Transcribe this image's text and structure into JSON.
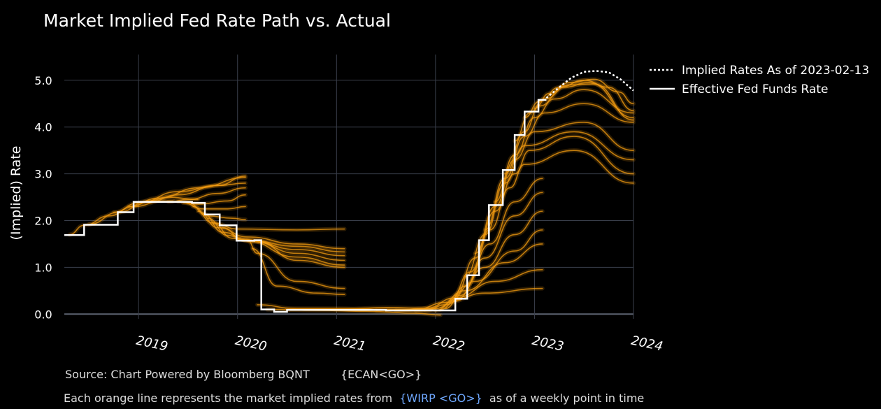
{
  "chart_data": {
    "type": "line",
    "title": "Market Implied Fed Rate Path vs. Actual",
    "ylabel": "(Implied) Rate",
    "xlabel": "",
    "xlim": [
      2018.25,
      2024.0
    ],
    "ylim": [
      -0.1,
      5.55
    ],
    "y_ticks": [
      0.0,
      1.0,
      2.0,
      3.0,
      4.0,
      5.0
    ],
    "y_tick_labels": [
      "0.0",
      "1.0",
      "2.0",
      "3.0",
      "4.0",
      "5.0"
    ],
    "x_ticks": [
      2019,
      2020,
      2021,
      2022,
      2023,
      2024
    ],
    "x_tick_labels": [
      "2019",
      "2020",
      "2021",
      "2022",
      "2023",
      "2024"
    ],
    "grid": true,
    "legend_placement": "top-right",
    "colors": {
      "background": "#000000",
      "grid": "#3a3f4b",
      "zero_line": "#5c6370",
      "implied_paths": "#f39c12",
      "effective_rate": "#ffffff",
      "implied_latest": "#ffffff"
    },
    "series": [
      {
        "name": "Implied Rates As of 2023-02-13",
        "style": "dotted",
        "x": [
          2023.12,
          2023.25,
          2023.37,
          2023.5,
          2023.62,
          2023.75,
          2023.87,
          2024.0
        ],
        "values": [
          4.62,
          4.85,
          5.05,
          5.18,
          5.2,
          5.17,
          5.02,
          4.78
        ]
      },
      {
        "name": "Effective Fed Funds Rate",
        "style": "step",
        "x": [
          2018.25,
          2018.37,
          2018.45,
          2018.69,
          2018.79,
          2018.95,
          2019.35,
          2019.54,
          2019.67,
          2019.82,
          2019.99,
          2020.17,
          2020.24,
          2020.37,
          2020.5,
          2021.0,
          2021.5,
          2022.0,
          2022.2,
          2022.32,
          2022.44,
          2022.54,
          2022.68,
          2022.8,
          2022.9,
          2023.04,
          2023.12
        ],
        "values": [
          1.69,
          1.69,
          1.91,
          1.91,
          2.18,
          2.4,
          2.4,
          2.38,
          2.13,
          1.9,
          1.57,
          1.58,
          0.1,
          0.05,
          0.09,
          0.09,
          0.08,
          0.08,
          0.33,
          0.83,
          1.58,
          2.33,
          3.08,
          3.83,
          4.33,
          4.58,
          4.58
        ]
      }
    ],
    "implied_paths_fan": [
      {
        "start": [
          2018.3,
          1.7
        ],
        "points": [
          [
            2018.45,
            1.9
          ],
          [
            2018.7,
            2.1
          ],
          [
            2018.95,
            2.3
          ],
          [
            2019.25,
            2.42
          ],
          [
            2019.35,
            2.42
          ]
        ]
      },
      {
        "start": [
          2018.5,
          1.92
        ],
        "points": [
          [
            2018.8,
            2.18
          ],
          [
            2019.1,
            2.42
          ],
          [
            2019.3,
            2.5
          ],
          [
            2019.6,
            2.45
          ]
        ]
      },
      {
        "start": [
          2018.75,
          2.18
        ],
        "points": [
          [
            2019.0,
            2.38
          ],
          [
            2019.4,
            2.62
          ],
          [
            2019.8,
            2.75
          ],
          [
            2020.08,
            2.8
          ]
        ]
      },
      {
        "start": [
          2018.9,
          2.3
        ],
        "points": [
          [
            2019.2,
            2.48
          ],
          [
            2019.6,
            2.7
          ],
          [
            2020.08,
            2.92
          ]
        ]
      },
      {
        "start": [
          2019.1,
          2.4
        ],
        "points": [
          [
            2019.4,
            2.55
          ],
          [
            2019.8,
            2.75
          ],
          [
            2020.08,
            2.95
          ]
        ]
      },
      {
        "start": [
          2019.3,
          2.4
        ],
        "points": [
          [
            2019.5,
            2.45
          ],
          [
            2019.8,
            2.58
          ],
          [
            2020.08,
            2.7
          ]
        ]
      },
      {
        "start": [
          2019.4,
          2.4
        ],
        "points": [
          [
            2019.6,
            2.35
          ],
          [
            2019.9,
            2.42
          ],
          [
            2020.08,
            2.55
          ]
        ]
      },
      {
        "start": [
          2019.45,
          2.38
        ],
        "points": [
          [
            2019.65,
            2.25
          ],
          [
            2019.9,
            2.25
          ],
          [
            2020.08,
            2.3
          ]
        ]
      },
      {
        "start": [
          2019.5,
          2.38
        ],
        "points": [
          [
            2019.7,
            2.1
          ],
          [
            2019.95,
            2.05
          ],
          [
            2020.08,
            2.02
          ]
        ]
      },
      {
        "start": [
          2019.55,
          2.3
        ],
        "points": [
          [
            2019.75,
            1.95
          ],
          [
            2020.0,
            1.82
          ],
          [
            2020.6,
            1.8
          ],
          [
            2021.08,
            1.82
          ]
        ]
      },
      {
        "start": [
          2019.6,
          2.2
        ],
        "points": [
          [
            2019.8,
            1.85
          ],
          [
            2020.1,
            1.65
          ],
          [
            2020.6,
            1.5
          ],
          [
            2021.08,
            1.4
          ]
        ]
      },
      {
        "start": [
          2019.65,
          2.15
        ],
        "points": [
          [
            2019.85,
            1.75
          ],
          [
            2020.1,
            1.58
          ],
          [
            2020.6,
            1.45
          ],
          [
            2021.08,
            1.33
          ]
        ]
      },
      {
        "start": [
          2019.7,
          2.05
        ],
        "points": [
          [
            2019.9,
            1.68
          ],
          [
            2020.1,
            1.58
          ],
          [
            2020.6,
            1.38
          ],
          [
            2021.08,
            1.25
          ]
        ]
      },
      {
        "start": [
          2019.75,
          1.95
        ],
        "points": [
          [
            2019.95,
            1.62
          ],
          [
            2020.15,
            1.55
          ],
          [
            2020.6,
            1.3
          ],
          [
            2021.08,
            1.15
          ]
        ]
      },
      {
        "start": [
          2019.85,
          1.85
        ],
        "points": [
          [
            2020.05,
            1.6
          ],
          [
            2020.6,
            1.22
          ],
          [
            2021.08,
            1.05
          ]
        ]
      },
      {
        "start": [
          2020.0,
          1.6
        ],
        "points": [
          [
            2020.2,
            1.55
          ],
          [
            2020.6,
            1.15
          ],
          [
            2021.08,
            1.0
          ]
        ]
      },
      {
        "start": [
          2020.1,
          1.58
        ],
        "points": [
          [
            2020.2,
            1.3
          ],
          [
            2020.6,
            0.7
          ],
          [
            2021.08,
            0.55
          ]
        ]
      },
      {
        "start": [
          2020.15,
          1.4
        ],
        "points": [
          [
            2020.4,
            0.6
          ],
          [
            2020.8,
            0.45
          ],
          [
            2021.08,
            0.42
          ]
        ]
      },
      {
        "start": [
          2020.2,
          0.2
        ],
        "points": [
          [
            2020.6,
            0.12
          ],
          [
            2021.0,
            0.12
          ],
          [
            2021.5,
            0.1
          ],
          [
            2022.0,
            0.08
          ]
        ]
      },
      {
        "start": [
          2020.3,
          0.1
        ],
        "points": [
          [
            2020.8,
            0.08
          ],
          [
            2021.3,
            0.06
          ],
          [
            2021.8,
            0.02
          ],
          [
            2022.05,
            -0.02
          ]
        ]
      },
      {
        "start": [
          2020.5,
          0.1
        ],
        "points": [
          [
            2021.0,
            0.1
          ],
          [
            2021.5,
            0.14
          ],
          [
            2022.0,
            0.12
          ]
        ]
      },
      {
        "start": [
          2021.4,
          0.08
        ],
        "points": [
          [
            2021.8,
            0.1
          ],
          [
            2022.1,
            0.25
          ],
          [
            2022.5,
            0.45
          ],
          [
            2023.08,
            0.55
          ]
        ]
      },
      {
        "start": [
          2021.6,
          0.08
        ],
        "points": [
          [
            2021.9,
            0.12
          ],
          [
            2022.2,
            0.35
          ],
          [
            2022.6,
            0.7
          ],
          [
            2023.08,
            0.95
          ]
        ]
      },
      {
        "start": [
          2021.8,
          0.08
        ],
        "points": [
          [
            2022.0,
            0.12
          ],
          [
            2022.3,
            0.5
          ],
          [
            2022.7,
            1.1
          ],
          [
            2023.08,
            1.5
          ]
        ]
      },
      {
        "start": [
          2021.9,
          0.08
        ],
        "points": [
          [
            2022.1,
            0.2
          ],
          [
            2022.4,
            0.7
          ],
          [
            2022.8,
            1.35
          ],
          [
            2023.08,
            1.8
          ]
        ]
      },
      {
        "start": [
          2022.0,
          0.08
        ],
        "points": [
          [
            2022.2,
            0.3
          ],
          [
            2022.5,
            1.0
          ],
          [
            2022.8,
            1.7
          ],
          [
            2023.08,
            2.2
          ]
        ]
      },
      {
        "start": [
          2022.05,
          0.1
        ],
        "points": [
          [
            2022.25,
            0.4
          ],
          [
            2022.5,
            1.2
          ],
          [
            2022.8,
            2.1
          ],
          [
            2023.08,
            2.6
          ]
        ]
      },
      {
        "start": [
          2022.1,
          0.12
        ],
        "points": [
          [
            2022.3,
            0.6
          ],
          [
            2022.55,
            1.5
          ],
          [
            2022.8,
            2.4
          ],
          [
            2023.08,
            2.9
          ]
        ]
      },
      {
        "start": [
          2022.15,
          0.3
        ],
        "points": [
          [
            2022.35,
            0.9
          ],
          [
            2022.55,
            1.8
          ],
          [
            2022.75,
            2.7
          ],
          [
            2022.9,
            3.2
          ],
          [
            2023.4,
            3.5
          ],
          [
            2024.0,
            2.8
          ]
        ]
      },
      {
        "start": [
          2022.2,
          0.4
        ],
        "points": [
          [
            2022.4,
            1.2
          ],
          [
            2022.6,
            2.2
          ],
          [
            2022.8,
            3.0
          ],
          [
            2022.95,
            3.5
          ],
          [
            2023.4,
            3.8
          ],
          [
            2024.0,
            3.0
          ]
        ]
      },
      {
        "start": [
          2022.3,
          0.8
        ],
        "points": [
          [
            2022.5,
            1.7
          ],
          [
            2022.7,
            2.8
          ],
          [
            2022.9,
            3.6
          ],
          [
            2023.4,
            3.9
          ],
          [
            2024.0,
            3.3
          ]
        ]
      },
      {
        "start": [
          2022.4,
          1.3
        ],
        "points": [
          [
            2022.6,
            2.3
          ],
          [
            2022.8,
            3.3
          ],
          [
            2023.0,
            3.9
          ],
          [
            2023.5,
            4.1
          ],
          [
            2024.0,
            3.5
          ]
        ]
      },
      {
        "start": [
          2022.5,
          1.8
        ],
        "points": [
          [
            2022.7,
            2.9
          ],
          [
            2022.9,
            3.8
          ],
          [
            2023.1,
            4.3
          ],
          [
            2023.5,
            4.5
          ],
          [
            2024.0,
            4.1
          ]
        ]
      },
      {
        "start": [
          2022.6,
          2.4
        ],
        "points": [
          [
            2022.8,
            3.4
          ],
          [
            2023.0,
            4.2
          ],
          [
            2023.2,
            4.6
          ],
          [
            2023.5,
            4.8
          ],
          [
            2024.0,
            4.3
          ]
        ]
      },
      {
        "start": [
          2022.7,
          3.0
        ],
        "points": [
          [
            2022.9,
            3.9
          ],
          [
            2023.05,
            4.45
          ],
          [
            2023.3,
            4.85
          ],
          [
            2023.55,
            4.95
          ],
          [
            2024.0,
            4.2
          ]
        ]
      },
      {
        "start": [
          2022.8,
          3.7
        ],
        "points": [
          [
            2022.95,
            4.3
          ],
          [
            2023.1,
            4.6
          ],
          [
            2023.35,
            4.9
          ],
          [
            2023.6,
            4.92
          ],
          [
            2024.0,
            4.15
          ]
        ]
      },
      {
        "start": [
          2022.9,
          4.2
        ],
        "points": [
          [
            2023.05,
            4.55
          ],
          [
            2023.25,
            4.85
          ],
          [
            2023.5,
            5.0
          ],
          [
            2023.75,
            4.85
          ],
          [
            2024.0,
            4.35
          ]
        ]
      },
      {
        "start": [
          2023.0,
          4.4
        ],
        "points": [
          [
            2023.15,
            4.72
          ],
          [
            2023.35,
            4.95
          ],
          [
            2023.6,
            5.02
          ],
          [
            2023.85,
            4.75
          ],
          [
            2024.0,
            4.5
          ]
        ]
      }
    ],
    "source_note": "Source: Chart Powered by Bloomberg BQNT",
    "source_code": "{ECAN<GO>}",
    "footnote_prefix": "Each orange line represents the market implied rates from",
    "footnote_link": "{WIRP <GO>}",
    "footnote_suffix": "as of a weekly point in time"
  }
}
